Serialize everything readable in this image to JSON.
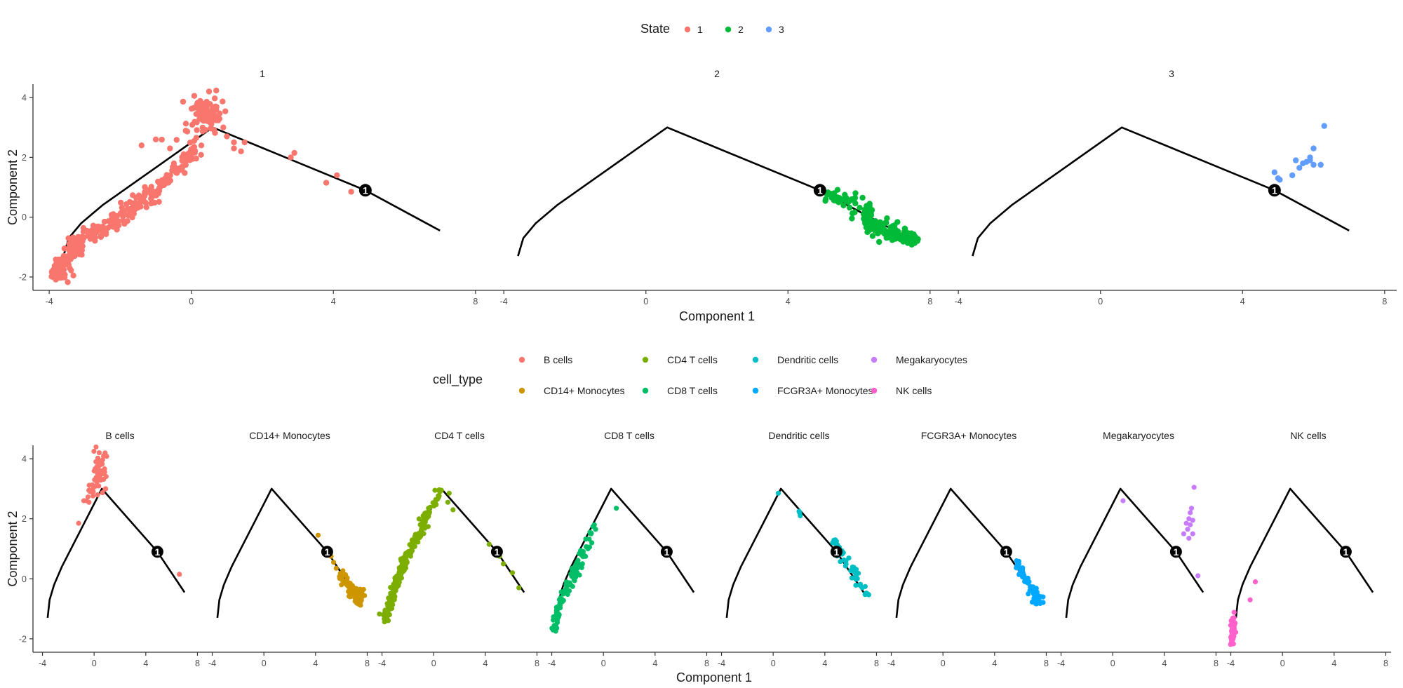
{
  "chart_data": [
    {
      "type": "scatter",
      "facet_by": "State",
      "xlabel": "Component 1",
      "ylabel": "Component 2",
      "xlim": [
        -4.3,
        8.3
      ],
      "ylim": [
        -2.4,
        4.4
      ],
      "xticks": [
        -4,
        0,
        4,
        8
      ],
      "yticks": [
        -2,
        0,
        2,
        4
      ],
      "grid": false,
      "legend": {
        "title": "State",
        "position": "top",
        "entries": [
          {
            "label": "1",
            "color": "#F8766D"
          },
          {
            "label": "2",
            "color": "#00BA38"
          },
          {
            "label": "3",
            "color": "#619CFF"
          }
        ]
      },
      "trajectory": [
        [
          -3.6,
          -1.3
        ],
        [
          -3.45,
          -0.7
        ],
        [
          -3.1,
          -0.2
        ],
        [
          -2.5,
          0.4
        ],
        [
          0.6,
          3.0
        ],
        [
          4.9,
          0.9
        ],
        [
          7.0,
          -0.45
        ]
      ],
      "branch_point": {
        "label": "1",
        "x": 4.9,
        "y": 0.9
      },
      "facets": [
        {
          "label": "1",
          "color": "#F8766D",
          "segments": [
            {
              "x0": -3.85,
              "y0": -2.05,
              "x1": -3.3,
              "y1": -0.95,
              "n": 80,
              "spread": 0.14
            },
            {
              "x0": -3.3,
              "y0": -0.95,
              "x1": -1.0,
              "y1": 0.85,
              "n": 150,
              "spread": 0.13
            },
            {
              "x0": -1.0,
              "y0": 0.85,
              "x1": 0.2,
              "y1": 2.3,
              "n": 60,
              "spread": 0.09
            }
          ],
          "clusters": [
            {
              "x": 0.4,
              "y": 3.45,
              "sx": 0.22,
              "sy": 0.28,
              "n": 80
            },
            {
              "x": -0.2,
              "y": 2.65,
              "sx": 0.3,
              "sy": 0.15,
              "n": 10
            }
          ],
          "points": [
            [
              0.5,
              4.2
            ],
            [
              -1.0,
              2.6
            ],
            [
              -1.4,
              2.4
            ],
            [
              1.0,
              2.7
            ],
            [
              1.2,
              2.5
            ],
            [
              1.2,
              2.3
            ],
            [
              1.5,
              2.5
            ],
            [
              1.4,
              2.2
            ],
            [
              2.9,
              2.15
            ],
            [
              2.8,
              2.0
            ],
            [
              4.1,
              1.4
            ],
            [
              3.8,
              1.15
            ],
            [
              4.5,
              0.85
            ],
            [
              0.9,
              3.0
            ],
            [
              -0.6,
              2.3
            ]
          ]
        },
        {
          "label": "2",
          "color": "#00BA38",
          "segments": [
            {
              "x0": 4.9,
              "y0": 0.85,
              "x1": 6.4,
              "y1": 0.1,
              "n": 45,
              "spread": 0.14
            },
            {
              "x0": 6.2,
              "y0": -0.15,
              "x1": 7.6,
              "y1": -0.8,
              "n": 120,
              "spread": 0.12
            }
          ],
          "clusters": [],
          "points": [
            [
              5.6,
              0.75
            ],
            [
              5.9,
              0.8
            ],
            [
              6.1,
              0.65
            ],
            [
              5.8,
              0.6
            ],
            [
              5.3,
              0.8
            ],
            [
              6.3,
              0.45
            ]
          ]
        },
        {
          "label": "3",
          "color": "#619CFF",
          "segments": [],
          "clusters": [],
          "points": [
            [
              6.3,
              3.05
            ],
            [
              6.0,
              2.3
            ],
            [
              5.9,
              2.0
            ],
            [
              5.8,
              1.85
            ],
            [
              6.0,
              1.75
            ],
            [
              5.7,
              1.8
            ],
            [
              6.2,
              1.75
            ],
            [
              5.5,
              1.9
            ],
            [
              5.6,
              1.65
            ],
            [
              5.4,
              1.4
            ],
            [
              4.9,
              1.5
            ],
            [
              5.0,
              1.3
            ],
            [
              5.05,
              1.25
            ],
            [
              5.9,
              1.9
            ]
          ]
        }
      ]
    },
    {
      "type": "scatter",
      "facet_by": "cell_type",
      "xlabel": "Component 1",
      "ylabel": "Component 2",
      "xlim": [
        -4.3,
        8.3
      ],
      "ylim": [
        -2.4,
        4.4
      ],
      "xticks": [
        -4,
        0,
        4,
        8
      ],
      "yticks": [
        -2,
        0,
        2,
        4
      ],
      "grid": false,
      "legend": {
        "title": "cell_type",
        "position": "top",
        "entries": [
          {
            "label": "B cells",
            "color": "#F8766D"
          },
          {
            "label": "CD14+ Monocytes",
            "color": "#CD9600"
          },
          {
            "label": "CD4 T cells",
            "color": "#7CAE00"
          },
          {
            "label": "CD8 T cells",
            "color": "#00BE67"
          },
          {
            "label": "Dendritic cells",
            "color": "#00BFC4"
          },
          {
            "label": "FCGR3A+ Monocytes",
            "color": "#00A9FF"
          },
          {
            "label": "Megakaryocytes",
            "color": "#C77CFF"
          },
          {
            "label": "NK cells",
            "color": "#FF61CC"
          }
        ]
      },
      "trajectory": [
        [
          -3.6,
          -1.3
        ],
        [
          -3.45,
          -0.7
        ],
        [
          -3.1,
          -0.2
        ],
        [
          -2.5,
          0.4
        ],
        [
          0.6,
          3.0
        ],
        [
          4.9,
          0.9
        ],
        [
          7.0,
          -0.45
        ]
      ],
      "branch_point": {
        "label": "1",
        "x": 4.9,
        "y": 0.9
      },
      "facets": [
        {
          "label": "B cells",
          "color": "#F8766D",
          "segments": [],
          "clusters": [
            {
              "x": 0.35,
              "y": 3.6,
              "sx": 0.2,
              "sy": 0.3,
              "n": 45
            },
            {
              "x": 0.0,
              "y": 3.0,
              "sx": 0.3,
              "sy": 0.15,
              "n": 12
            }
          ],
          "points": [
            [
              0.4,
              4.2
            ],
            [
              -0.6,
              2.6
            ],
            [
              -0.4,
              2.55
            ],
            [
              -0.8,
              2.6
            ],
            [
              -1.2,
              1.85
            ],
            [
              0.9,
              3.0
            ],
            [
              6.6,
              0.15
            ],
            [
              -0.3,
              2.9
            ]
          ]
        },
        {
          "label": "CD14+ Monocytes",
          "color": "#CD9600",
          "segments": [
            {
              "x0": 5.8,
              "y0": 0.1,
              "x1": 7.6,
              "y1": -0.8,
              "n": 60,
              "spread": 0.12
            }
          ],
          "clusters": [
            {
              "x": 7.3,
              "y": -0.55,
              "sx": 0.25,
              "sy": 0.15,
              "n": 25
            }
          ],
          "points": [
            [
              4.2,
              1.45
            ],
            [
              4.8,
              1.0
            ],
            [
              5.2,
              0.75
            ],
            [
              5.4,
              0.55
            ],
            [
              5.6,
              0.35
            ],
            [
              5.0,
              0.95
            ]
          ]
        },
        {
          "label": "CD4 T cells",
          "color": "#7CAE00",
          "segments": [
            {
              "x0": -3.85,
              "y0": -1.45,
              "x1": -2.5,
              "y1": 0.35,
              "n": 90,
              "spread": 0.13
            },
            {
              "x0": -2.5,
              "y0": 0.35,
              "x1": -0.2,
              "y1": 2.3,
              "n": 100,
              "spread": 0.12
            },
            {
              "x0": -0.2,
              "y0": 2.3,
              "x1": 0.5,
              "y1": 2.9,
              "n": 15,
              "spread": 0.08
            }
          ],
          "points": [
            [
              0.1,
              2.95
            ],
            [
              0.4,
              2.95
            ],
            [
              0.6,
              2.95
            ],
            [
              1.2,
              2.85
            ],
            [
              1.1,
              2.55
            ],
            [
              1.5,
              2.3
            ],
            [
              4.3,
              1.15
            ],
            [
              4.8,
              0.9
            ],
            [
              5.1,
              0.75
            ],
            [
              5.4,
              0.5
            ],
            [
              6.1,
              0.2
            ],
            [
              6.6,
              -0.3
            ],
            [
              -3.7,
              -1.3
            ],
            [
              -3.9,
              -1.2
            ]
          ],
          "clusters": []
        },
        {
          "label": "CD8 T cells",
          "color": "#00BE67",
          "segments": [
            {
              "x0": -3.9,
              "y0": -1.75,
              "x1": -3.3,
              "y1": -0.65,
              "n": 45,
              "spread": 0.1
            },
            {
              "x0": -3.3,
              "y0": -0.65,
              "x1": -1.5,
              "y1": 0.85,
              "n": 60,
              "spread": 0.12
            },
            {
              "x0": -1.5,
              "y0": 0.85,
              "x1": -0.8,
              "y1": 1.7,
              "n": 12,
              "spread": 0.1
            }
          ],
          "clusters": [],
          "points": [
            [
              -0.7,
              1.8
            ],
            [
              -0.6,
              1.65
            ],
            [
              1.0,
              2.35
            ],
            [
              -0.9,
              1.2
            ],
            [
              -1.2,
              1.0
            ]
          ]
        },
        {
          "label": "Dendritic cells",
          "color": "#00BFC4",
          "segments": [
            {
              "x0": 4.6,
              "y0": 1.2,
              "x1": 7.4,
              "y1": -0.55,
              "n": 40,
              "spread": 0.12
            }
          ],
          "clusters": [],
          "points": [
            [
              0.4,
              2.85
            ],
            [
              2.0,
              2.25
            ],
            [
              2.1,
              2.1
            ],
            [
              2.05,
              2.2
            ],
            [
              4.8,
              1.3
            ],
            [
              4.6,
              1.2
            ],
            [
              4.9,
              1.25
            ],
            [
              6.9,
              -0.3
            ],
            [
              7.3,
              -0.5
            ]
          ]
        },
        {
          "label": "FCGR3A+ Monocytes",
          "color": "#00A9FF",
          "segments": [
            {
              "x0": 5.7,
              "y0": 0.5,
              "x1": 7.6,
              "y1": -0.85,
              "n": 55,
              "spread": 0.12
            }
          ],
          "clusters": [
            {
              "x": 7.3,
              "y": -0.6,
              "sx": 0.2,
              "sy": 0.15,
              "n": 20
            }
          ],
          "points": [
            [
              5.7,
              0.6
            ],
            [
              5.8,
              0.5
            ],
            [
              6.0,
              0.3
            ],
            [
              6.2,
              0.2
            ],
            [
              6.3,
              0.05
            ],
            [
              6.4,
              -0.1
            ]
          ]
        },
        {
          "label": "Megakaryocytes",
          "color": "#C77CFF",
          "segments": [],
          "clusters": [],
          "points": [
            [
              0.8,
              2.6
            ],
            [
              6.3,
              3.05
            ],
            [
              6.1,
              2.35
            ],
            [
              6.0,
              2.2
            ],
            [
              5.9,
              2.0
            ],
            [
              6.2,
              1.95
            ],
            [
              5.7,
              1.85
            ],
            [
              6.0,
              1.8
            ],
            [
              5.8,
              1.65
            ],
            [
              6.2,
              1.5
            ],
            [
              5.5,
              1.5
            ],
            [
              5.9,
              1.35
            ],
            [
              6.6,
              0.1
            ]
          ]
        },
        {
          "label": "NK cells",
          "color": "#FF61CC",
          "segments": [
            {
              "x0": -3.95,
              "y0": -2.15,
              "x1": -3.75,
              "y1": -1.4,
              "n": 45,
              "spread": 0.05
            }
          ],
          "clusters": [
            {
              "x": -3.85,
              "y": -1.75,
              "sx": 0.06,
              "sy": 0.25,
              "n": 25
            }
          ],
          "points": [
            [
              -2.1,
              -0.1
            ],
            [
              -2.5,
              -0.7
            ],
            [
              -3.75,
              -1.3
            ]
          ]
        }
      ]
    }
  ]
}
